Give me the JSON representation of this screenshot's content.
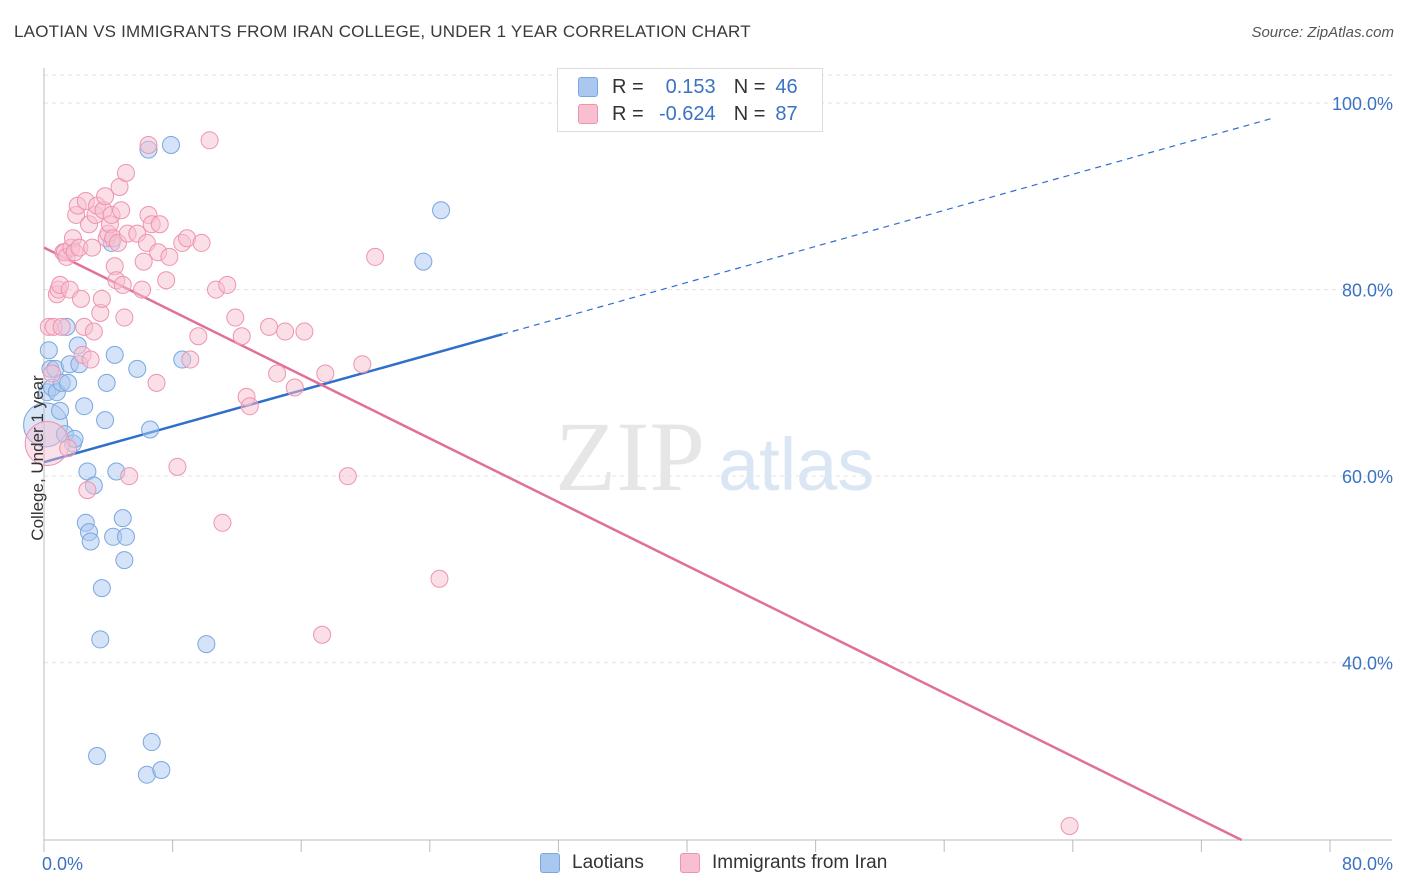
{
  "title": "LAOTIAN VS IMMIGRANTS FROM IRAN COLLEGE, UNDER 1 YEAR CORRELATION CHART",
  "source": "Source: ZipAtlas.com",
  "watermark": {
    "zip": "ZIP",
    "atlas": "atlas"
  },
  "legend": {
    "r_label": "R =",
    "n_label": "N =",
    "rows": [
      {
        "r": "0.153",
        "n": "46",
        "color": "#aac8ef",
        "border": "#7aa7e0"
      },
      {
        "r": "-0.624",
        "n": "87",
        "color": "#f7bfd0",
        "border": "#ee93b0"
      }
    ]
  },
  "chart_data": {
    "type": "scatter",
    "title": "LAOTIAN VS IMMIGRANTS FROM IRAN COLLEGE, UNDER 1 YEAR CORRELATION CHART",
    "xlabel": "",
    "ylabel": "College, Under 1 year",
    "xlim": [
      0,
      80
    ],
    "ylim": [
      21,
      103
    ],
    "x_tick_labels": [
      "0.0%",
      "80.0%"
    ],
    "y_tick_labels": [
      "40.0%",
      "60.0%",
      "80.0%",
      "100.0%"
    ],
    "y_ticks": [
      40,
      60,
      80,
      100
    ],
    "grid": true,
    "legend_position": "bottom",
    "series": [
      {
        "name": "Laotians",
        "color": "#7aa7e0",
        "fill": "#aac8ef",
        "points": [
          [
            0.1,
            65.5
          ],
          [
            0.2,
            69.0
          ],
          [
            0.3,
            73.5
          ],
          [
            0.4,
            71.5
          ],
          [
            0.5,
            69.5
          ],
          [
            0.7,
            71.5
          ],
          [
            0.8,
            69.0
          ],
          [
            1.0,
            67.0
          ],
          [
            1.1,
            70.0
          ],
          [
            1.3,
            64.5
          ],
          [
            1.4,
            76.0
          ],
          [
            1.5,
            70.0
          ],
          [
            1.6,
            72.0
          ],
          [
            1.8,
            63.5
          ],
          [
            2.1,
            74.0
          ],
          [
            2.2,
            72.0
          ],
          [
            2.5,
            67.5
          ],
          [
            2.6,
            55.0
          ],
          [
            2.7,
            60.5
          ],
          [
            2.8,
            54.0
          ],
          [
            2.9,
            53.0
          ],
          [
            3.1,
            59.0
          ],
          [
            3.3,
            30.0
          ],
          [
            3.5,
            42.5
          ],
          [
            3.6,
            48.0
          ],
          [
            3.8,
            66.0
          ],
          [
            3.9,
            70.0
          ],
          [
            4.2,
            85.0
          ],
          [
            4.3,
            53.5
          ],
          [
            4.4,
            73.0
          ],
          [
            4.5,
            60.5
          ],
          [
            4.9,
            55.5
          ],
          [
            5.0,
            51.0
          ],
          [
            5.1,
            53.5
          ],
          [
            5.8,
            71.5
          ],
          [
            6.4,
            28.0
          ],
          [
            6.5,
            95.0
          ],
          [
            6.6,
            65.0
          ],
          [
            6.7,
            31.5
          ],
          [
            7.3,
            28.5
          ],
          [
            7.9,
            95.5
          ],
          [
            8.6,
            72.5
          ],
          [
            10.1,
            42.0
          ],
          [
            23.6,
            83.0
          ],
          [
            24.7,
            88.5
          ],
          [
            1.9,
            64.0
          ]
        ]
      },
      {
        "name": "Immigrants from Iran",
        "color": "#ee93b0",
        "fill": "#f7bfd0",
        "points": [
          [
            0.2,
            63.5
          ],
          [
            0.3,
            76.0
          ],
          [
            0.5,
            71.0
          ],
          [
            0.6,
            76.0
          ],
          [
            0.8,
            79.5
          ],
          [
            0.9,
            80.0
          ],
          [
            1.0,
            80.5
          ],
          [
            1.1,
            76.0
          ],
          [
            1.2,
            84.0
          ],
          [
            1.3,
            84.0
          ],
          [
            1.4,
            83.5
          ],
          [
            1.5,
            63.0
          ],
          [
            1.6,
            80.0
          ],
          [
            1.7,
            84.5
          ],
          [
            1.8,
            85.5
          ],
          [
            1.9,
            84.0
          ],
          [
            2.0,
            88.0
          ],
          [
            2.1,
            89.0
          ],
          [
            2.2,
            84.5
          ],
          [
            2.3,
            79.0
          ],
          [
            2.4,
            73.0
          ],
          [
            2.5,
            76.0
          ],
          [
            2.6,
            89.5
          ],
          [
            2.7,
            58.5
          ],
          [
            2.8,
            87.0
          ],
          [
            2.9,
            72.5
          ],
          [
            3.0,
            84.5
          ],
          [
            3.1,
            75.5
          ],
          [
            3.2,
            88.0
          ],
          [
            3.3,
            89.0
          ],
          [
            3.5,
            77.5
          ],
          [
            3.6,
            79.0
          ],
          [
            3.7,
            88.5
          ],
          [
            3.8,
            90.0
          ],
          [
            3.9,
            85.5
          ],
          [
            4.0,
            86.0
          ],
          [
            4.1,
            87.0
          ],
          [
            4.2,
            88.0
          ],
          [
            4.3,
            85.5
          ],
          [
            4.4,
            82.5
          ],
          [
            4.5,
            81.0
          ],
          [
            4.6,
            85.0
          ],
          [
            4.7,
            91.0
          ],
          [
            4.8,
            88.5
          ],
          [
            4.9,
            80.5
          ],
          [
            5.0,
            77.0
          ],
          [
            5.1,
            92.5
          ],
          [
            5.2,
            86.0
          ],
          [
            5.3,
            60.0
          ],
          [
            5.8,
            86.0
          ],
          [
            6.1,
            80.0
          ],
          [
            6.2,
            83.0
          ],
          [
            6.4,
            85.0
          ],
          [
            6.5,
            88.0
          ],
          [
            6.7,
            87.0
          ],
          [
            7.0,
            70.0
          ],
          [
            7.1,
            84.0
          ],
          [
            7.2,
            87.0
          ],
          [
            7.6,
            81.0
          ],
          [
            7.8,
            83.5
          ],
          [
            8.3,
            61.0
          ],
          [
            8.6,
            85.0
          ],
          [
            8.9,
            85.5
          ],
          [
            9.1,
            72.5
          ],
          [
            9.6,
            75.0
          ],
          [
            9.8,
            85.0
          ],
          [
            10.3,
            96.0
          ],
          [
            10.7,
            80.0
          ],
          [
            11.1,
            55.0
          ],
          [
            11.4,
            80.5
          ],
          [
            11.9,
            77.0
          ],
          [
            12.3,
            75.0
          ],
          [
            12.6,
            68.5
          ],
          [
            12.8,
            67.5
          ],
          [
            14.0,
            76.0
          ],
          [
            14.5,
            71.0
          ],
          [
            15.0,
            75.5
          ],
          [
            15.6,
            69.5
          ],
          [
            16.2,
            75.5
          ],
          [
            17.3,
            43.0
          ],
          [
            17.5,
            71.0
          ],
          [
            18.9,
            60.0
          ],
          [
            19.8,
            72.0
          ],
          [
            20.6,
            83.5
          ],
          [
            24.6,
            49.0
          ],
          [
            6.5,
            95.5
          ],
          [
            63.8,
            22.5
          ]
        ]
      }
    ],
    "trend_lines": [
      {
        "series": "Laotians",
        "x0": 0,
        "y0": 61.5,
        "x1": 28.5,
        "y1": 75.2,
        "dashed_to_x": 76.5,
        "dashed_to_y": 98.4
      },
      {
        "series": "Immigrants from Iran",
        "x0": 0,
        "y0": 84.5,
        "x1": 74.5,
        "y1": 21.0
      }
    ]
  },
  "bottom_legend": {
    "items": [
      {
        "label": "Laotians",
        "color": "#aac8ef",
        "border": "#7aa7e0"
      },
      {
        "label": "Immigrants from Iran",
        "color": "#f7bfd0",
        "border": "#ee93b0"
      }
    ]
  },
  "colors": {
    "axis_text": "#3c72c4",
    "blue_line": "#2f6fcc",
    "pink_line": "#e0709a",
    "grid": "#e3e3e3"
  }
}
